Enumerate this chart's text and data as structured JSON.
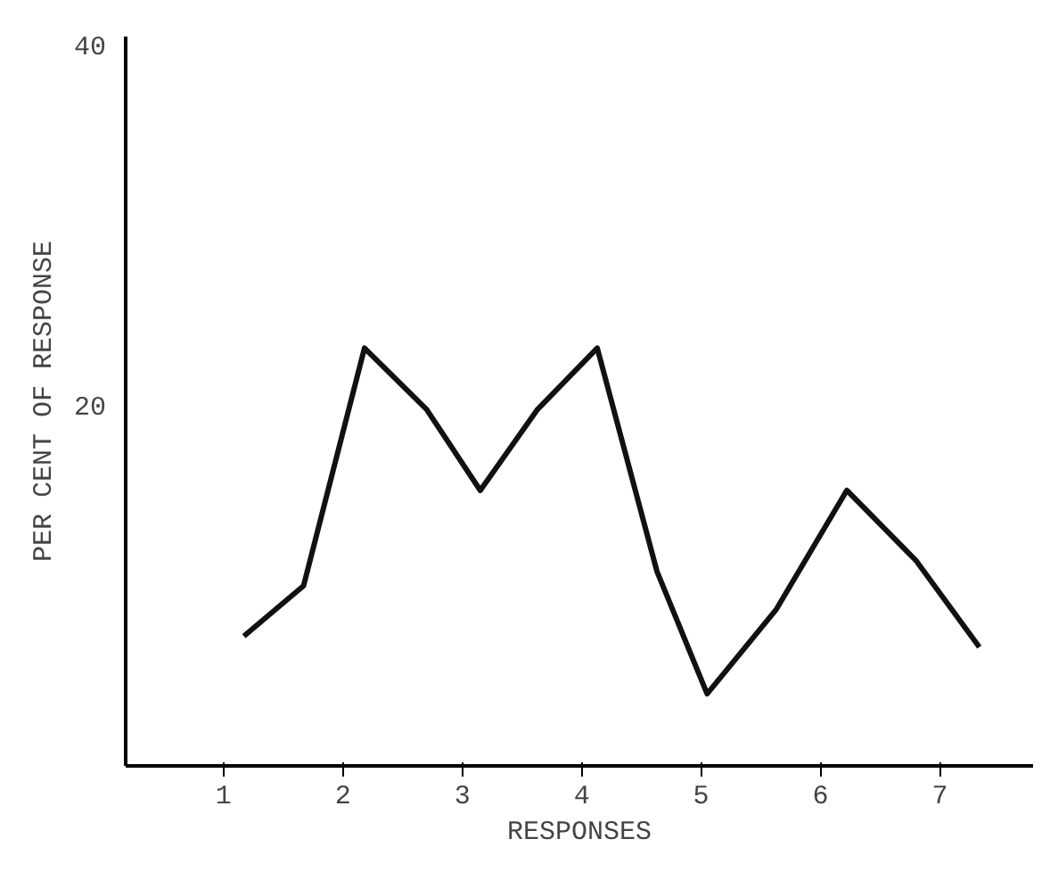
{
  "chart_data": {
    "type": "line",
    "xlabel": "RESPONSES",
    "ylabel": "PER CENT OF RESPONSE",
    "x": [
      1.17,
      1.67,
      2.18,
      2.7,
      3.15,
      3.63,
      4.13,
      4.63,
      5.05,
      5.63,
      6.22,
      6.8,
      7.33
    ],
    "series": [
      {
        "color": "#111111",
        "values": [
          7.2,
          10,
          23.2,
          19.8,
          15.3,
          19.8,
          23.2,
          10.8,
          4.0,
          8.7,
          15.3,
          11.4,
          6.6
        ]
      }
    ],
    "xlim": [
      0.18,
      7.78
    ],
    "ylim": [
      0,
      40.5
    ],
    "xticks": [
      1,
      2,
      3,
      4,
      5,
      6,
      7
    ],
    "yticks": [
      20,
      40
    ],
    "grid": false,
    "marker": "none",
    "line_style": "solid"
  }
}
